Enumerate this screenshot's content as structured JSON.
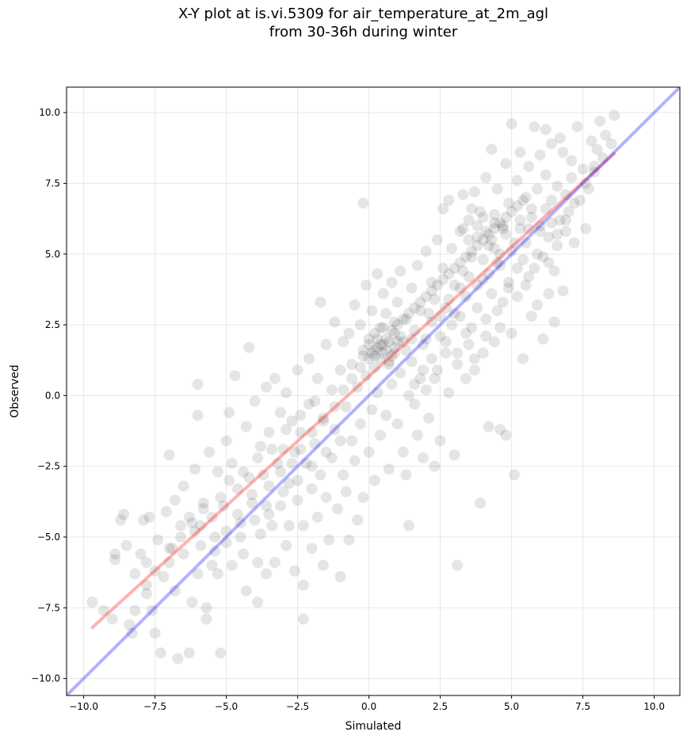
{
  "chart_data": {
    "type": "scatter",
    "title_lines": [
      "X-Y plot at is.vi.5309 for air_temperature_at_2m_agl",
      "from 30-36h during winter"
    ],
    "xlabel": "Simulated",
    "ylabel": "Observed",
    "xlim": [
      -10.6,
      10.9
    ],
    "ylim": [
      -10.6,
      10.9
    ],
    "xticks": [
      -10.0,
      -7.5,
      -5.0,
      -2.5,
      0.0,
      2.5,
      5.0,
      7.5,
      10.0
    ],
    "yticks": [
      -10.0,
      -7.5,
      -5.0,
      -2.5,
      0.0,
      2.5,
      5.0,
      7.5,
      10.0
    ],
    "xtick_labels": [
      "−10.0",
      "−7.5",
      "−5.0",
      "−2.5",
      "0.0",
      "2.5",
      "5.0",
      "7.5",
      "10.0"
    ],
    "ytick_labels": [
      "−10.0",
      "−7.5",
      "−5.0",
      "−2.5",
      "0.0",
      "2.5",
      "5.0",
      "7.5",
      "10.0"
    ],
    "grid": true,
    "point_color": "#000000",
    "point_opacity": 0.1,
    "fit_line": {
      "color": "#ff0000",
      "x": [
        -9.7,
        8.6
      ],
      "y": [
        -8.2,
        8.55
      ]
    },
    "identity_line": {
      "color": "#0000ff",
      "x": [
        -10.6,
        10.9
      ],
      "y": [
        -10.6,
        10.9
      ]
    },
    "points": [
      [
        -9.7,
        -7.3
      ],
      [
        -9.3,
        -7.6
      ],
      [
        -9.0,
        -7.9
      ],
      [
        -8.9,
        -5.6
      ],
      [
        -8.9,
        -5.8
      ],
      [
        -8.7,
        -4.4
      ],
      [
        -8.6,
        -4.2
      ],
      [
        -8.5,
        -5.3
      ],
      [
        -8.4,
        -8.1
      ],
      [
        -8.3,
        -8.4
      ],
      [
        -8.2,
        -7.6
      ],
      [
        -8.0,
        -5.6
      ],
      [
        -7.9,
        -4.4
      ],
      [
        -7.8,
        -6.7
      ],
      [
        -7.8,
        -5.9
      ],
      [
        -7.7,
        -4.3
      ],
      [
        -7.6,
        -7.6
      ],
      [
        -7.5,
        -8.4
      ],
      [
        -7.4,
        -5.1
      ],
      [
        -7.3,
        -9.1
      ],
      [
        -7.2,
        -6.4
      ],
      [
        -7.1,
        -4.1
      ],
      [
        -7.0,
        -5.9
      ],
      [
        -7.0,
        -2.1
      ],
      [
        -6.9,
        -5.4
      ],
      [
        -6.8,
        -3.7
      ],
      [
        -6.7,
        -9.3
      ],
      [
        -6.6,
        -4.6
      ],
      [
        -6.5,
        -5.6
      ],
      [
        -6.5,
        -3.2
      ],
      [
        -6.3,
        -9.1
      ],
      [
        -6.2,
        -7.3
      ],
      [
        -6.1,
        -4.8
      ],
      [
        -6.1,
        -2.6
      ],
      [
        -6.0,
        -0.7
      ],
      [
        -6.0,
        0.4
      ],
      [
        -5.9,
        -5.3
      ],
      [
        -5.8,
        -3.8
      ],
      [
        -5.7,
        -7.9
      ],
      [
        -5.7,
        -7.5
      ],
      [
        -5.6,
        -2.0
      ],
      [
        -5.5,
        -4.3
      ],
      [
        -5.4,
        -5.5
      ],
      [
        -5.3,
        -6.3
      ],
      [
        -5.3,
        -2.7
      ],
      [
        -5.2,
        -9.1
      ],
      [
        -5.1,
        -3.9
      ],
      [
        -5.0,
        -1.6
      ],
      [
        -5.0,
        -4.8
      ],
      [
        -4.9,
        -0.6
      ],
      [
        -4.8,
        -6.0
      ],
      [
        -4.8,
        -2.4
      ],
      [
        -4.7,
        0.7
      ],
      [
        -4.6,
        -3.3
      ],
      [
        -4.5,
        -4.5
      ],
      [
        -4.4,
        -5.6
      ],
      [
        -4.3,
        -1.1
      ],
      [
        -4.3,
        -6.9
      ],
      [
        -4.2,
        -2.9
      ],
      [
        -4.2,
        1.7
      ],
      [
        -4.1,
        -3.8
      ],
      [
        -4.0,
        -0.2
      ],
      [
        -3.9,
        -7.3
      ],
      [
        -3.9,
        -5.9
      ],
      [
        -3.8,
        -4.9
      ],
      [
        -3.8,
        -1.8
      ],
      [
        -3.7,
        -2.8
      ],
      [
        -3.6,
        0.3
      ],
      [
        -3.6,
        -6.3
      ],
      [
        -3.5,
        -3.2
      ],
      [
        -3.5,
        -1.3
      ],
      [
        -3.4,
        -4.6
      ],
      [
        -3.3,
        -5.9
      ],
      [
        -3.3,
        0.6
      ],
      [
        -3.2,
        -2.4
      ],
      [
        -3.1,
        -0.6
      ],
      [
        -3.1,
        -3.9
      ],
      [
        -3.0,
        -1.9
      ],
      [
        -2.9,
        -5.3
      ],
      [
        -2.9,
        0.1
      ],
      [
        -2.8,
        -3.1
      ],
      [
        -2.8,
        -4.6
      ],
      [
        -2.7,
        -0.9
      ],
      [
        -2.6,
        -6.2
      ],
      [
        -2.6,
        -2.0
      ],
      [
        -2.5,
        -3.7
      ],
      [
        -2.5,
        0.9
      ],
      [
        -2.4,
        -1.3
      ],
      [
        -2.3,
        -7.9
      ],
      [
        -2.3,
        -4.6
      ],
      [
        -2.3,
        -6.7
      ],
      [
        -2.2,
        -2.4
      ],
      [
        -2.1,
        -0.3
      ],
      [
        -2.1,
        1.3
      ],
      [
        -2.0,
        -3.3
      ],
      [
        -2.0,
        -5.4
      ],
      [
        -1.9,
        -1.7
      ],
      [
        -1.8,
        -4.3
      ],
      [
        -1.8,
        0.6
      ],
      [
        -1.7,
        -2.8
      ],
      [
        -1.7,
        3.3
      ],
      [
        -1.6,
        -6.0
      ],
      [
        -1.6,
        -0.8
      ],
      [
        -1.5,
        1.8
      ],
      [
        -1.5,
        -3.6
      ],
      [
        -1.4,
        -5.1
      ],
      [
        -1.3,
        -2.2
      ],
      [
        -1.3,
        0.2
      ],
      [
        -1.2,
        2.6
      ],
      [
        -1.2,
        -1.2
      ],
      [
        -1.1,
        -4.0
      ],
      [
        -1.0,
        0.9
      ],
      [
        -1.0,
        -6.4
      ],
      [
        -0.9,
        -2.8
      ],
      [
        -0.9,
        1.9
      ],
      [
        -0.8,
        -0.4
      ],
      [
        -0.8,
        -3.4
      ],
      [
        -0.7,
        2.2
      ],
      [
        -0.7,
        -5.1
      ],
      [
        -0.6,
        -1.6
      ],
      [
        -0.6,
        1.1
      ],
      [
        -0.5,
        -2.3
      ],
      [
        -0.5,
        3.2
      ],
      [
        -0.4,
        0.3
      ],
      [
        -0.4,
        -4.4
      ],
      [
        -0.3,
        2.5
      ],
      [
        -0.3,
        -1.0
      ],
      [
        -0.2,
        6.8
      ],
      [
        -0.2,
        1.6
      ],
      [
        -0.2,
        -3.6
      ],
      [
        -0.1,
        3.9
      ],
      [
        -0.1,
        0.7
      ],
      [
        0.0,
        -2.0
      ],
      [
        0.0,
        2.0
      ],
      [
        0.1,
        -0.5
      ],
      [
        0.1,
        3.0
      ],
      [
        0.2,
        1.4
      ],
      [
        0.2,
        -3.0
      ],
      [
        0.3,
        4.3
      ],
      [
        0.3,
        0.1
      ],
      [
        0.4,
        2.4
      ],
      [
        0.4,
        -1.4
      ],
      [
        0.5,
        1.8
      ],
      [
        0.5,
        3.6
      ],
      [
        0.6,
        -0.7
      ],
      [
        0.6,
        2.9
      ],
      [
        0.7,
        1.1
      ],
      [
        0.7,
        -2.6
      ],
      [
        0.8,
        4.0
      ],
      [
        0.8,
        0.4
      ],
      [
        0.9,
        2.2
      ],
      [
        0.9,
        1.5
      ],
      [
        1.0,
        -1.0
      ],
      [
        1.0,
        3.3
      ],
      [
        1.1,
        0.8
      ],
      [
        1.1,
        4.4
      ],
      [
        1.2,
        -2.0
      ],
      [
        1.2,
        1.9
      ],
      [
        1.3,
        -2.8
      ],
      [
        1.3,
        2.7
      ],
      [
        1.4,
        0.0
      ],
      [
        1.4,
        -4.6
      ],
      [
        1.5,
        3.8
      ],
      [
        1.5,
        1.2
      ],
      [
        1.6,
        -0.3
      ],
      [
        1.6,
        2.3
      ],
      [
        1.7,
        -1.4
      ],
      [
        1.7,
        4.6
      ],
      [
        1.8,
        0.6
      ],
      [
        1.8,
        3.0
      ],
      [
        1.9,
        -2.2
      ],
      [
        1.9,
        1.8
      ],
      [
        2.0,
        5.1
      ],
      [
        2.0,
        0.2
      ],
      [
        2.1,
        2.9
      ],
      [
        2.1,
        -0.8
      ],
      [
        2.2,
        4.0
      ],
      [
        2.2,
        1.3
      ],
      [
        2.3,
        -2.5
      ],
      [
        2.3,
        3.4
      ],
      [
        2.4,
        0.9
      ],
      [
        2.4,
        5.5
      ],
      [
        2.5,
        2.1
      ],
      [
        2.5,
        -1.6
      ],
      [
        2.6,
        4.5
      ],
      [
        2.6,
        6.6
      ],
      [
        2.7,
        1.5
      ],
      [
        2.7,
        3.1
      ],
      [
        2.8,
        0.1
      ],
      [
        2.8,
        6.9
      ],
      [
        2.9,
        5.2
      ],
      [
        2.9,
        2.5
      ],
      [
        3.0,
        -2.1
      ],
      [
        3.0,
        3.9
      ],
      [
        3.1,
        -6.0
      ],
      [
        3.1,
        1.1
      ],
      [
        3.2,
        5.8
      ],
      [
        3.2,
        2.8
      ],
      [
        3.3,
        7.1
      ],
      [
        3.3,
        4.4
      ],
      [
        3.4,
        0.6
      ],
      [
        3.4,
        3.5
      ],
      [
        3.5,
        6.2
      ],
      [
        3.5,
        1.8
      ],
      [
        3.6,
        4.9
      ],
      [
        3.6,
        2.4
      ],
      [
        3.7,
        7.2
      ],
      [
        3.7,
        0.9
      ],
      [
        3.8,
        5.6
      ],
      [
        3.8,
        3.1
      ],
      [
        3.9,
        -3.8
      ],
      [
        3.9,
        6.5
      ],
      [
        4.0,
        1.5
      ],
      [
        4.0,
        4.1
      ],
      [
        4.1,
        7.7
      ],
      [
        4.1,
        2.7
      ],
      [
        4.2,
        5.3
      ],
      [
        4.2,
        -1.1
      ],
      [
        4.3,
        8.7
      ],
      [
        4.3,
        3.6
      ],
      [
        4.4,
        6.1
      ],
      [
        4.4,
        1.9
      ],
      [
        4.5,
        4.7
      ],
      [
        4.5,
        7.3
      ],
      [
        4.6,
        2.4
      ],
      [
        4.6,
        -1.2
      ],
      [
        4.7,
        5.9
      ],
      [
        4.7,
        3.3
      ],
      [
        4.8,
        8.2
      ],
      [
        4.8,
        -1.4
      ],
      [
        4.9,
        6.8
      ],
      [
        4.9,
        4.0
      ],
      [
        5.0,
        9.6
      ],
      [
        5.0,
        2.2
      ],
      [
        5.1,
        5.4
      ],
      [
        5.1,
        -2.8
      ],
      [
        5.2,
        7.6
      ],
      [
        5.2,
        3.5
      ],
      [
        5.3,
        6.2
      ],
      [
        5.3,
        8.6
      ],
      [
        5.4,
        4.8
      ],
      [
        5.4,
        1.3
      ],
      [
        5.5,
        7.0
      ],
      [
        5.5,
        3.9
      ],
      [
        5.6,
        5.9
      ],
      [
        5.6,
        8.1
      ],
      [
        5.7,
        2.8
      ],
      [
        5.7,
        6.6
      ],
      [
        5.8,
        4.5
      ],
      [
        5.8,
        9.5
      ],
      [
        5.9,
        7.3
      ],
      [
        5.9,
        3.2
      ],
      [
        6.0,
        6.0
      ],
      [
        6.0,
        8.5
      ],
      [
        6.1,
        4.9
      ],
      [
        6.1,
        2.0
      ],
      [
        6.2,
        7.8
      ],
      [
        6.2,
        9.4
      ],
      [
        6.3,
        5.6
      ],
      [
        6.3,
        3.6
      ],
      [
        6.4,
        6.9
      ],
      [
        6.4,
        8.9
      ],
      [
        6.5,
        4.4
      ],
      [
        6.5,
        2.6
      ],
      [
        6.6,
        7.4
      ],
      [
        6.6,
        5.3
      ],
      [
        6.7,
        9.1
      ],
      [
        6.7,
        6.2
      ],
      [
        6.8,
        8.6
      ],
      [
        6.8,
        3.7
      ],
      [
        6.9,
        7.1
      ],
      [
        6.9,
        5.8
      ],
      [
        7.0,
        6.5
      ],
      [
        7.1,
        7.7
      ],
      [
        7.2,
        5.4
      ],
      [
        7.3,
        9.5
      ],
      [
        7.4,
        6.9
      ],
      [
        7.5,
        8.0
      ],
      [
        7.6,
        5.9
      ],
      [
        7.7,
        7.3
      ],
      [
        7.8,
        9.0
      ],
      [
        7.9,
        8.1
      ],
      [
        8.0,
        8.7
      ],
      [
        8.1,
        9.7
      ],
      [
        8.2,
        8.4
      ],
      [
        8.3,
        9.2
      ],
      [
        8.5,
        8.9
      ],
      [
        8.6,
        9.9
      ],
      [
        -4.6,
        -4.2
      ],
      [
        -4.1,
        -3.5
      ],
      [
        -3.6,
        -3.9
      ],
      [
        -3.1,
        -2.7
      ],
      [
        -2.7,
        -2.4
      ],
      [
        -2.4,
        -1.9
      ],
      [
        -2.0,
        -1.3
      ],
      [
        -1.6,
        -0.9
      ],
      [
        -1.2,
        -0.4
      ],
      [
        -0.9,
        0.2
      ],
      [
        -0.6,
        0.6
      ],
      [
        -0.3,
        1.0
      ],
      [
        0.0,
        1.3
      ],
      [
        0.2,
        1.6
      ],
      [
        0.4,
        1.8
      ],
      [
        0.6,
        2.0
      ],
      [
        0.8,
        2.3
      ],
      [
        1.0,
        2.5
      ],
      [
        1.2,
        2.7
      ],
      [
        1.4,
        2.9
      ],
      [
        1.6,
        3.1
      ],
      [
        1.8,
        3.3
      ],
      [
        2.0,
        3.5
      ],
      [
        2.2,
        3.7
      ],
      [
        2.4,
        3.9
      ],
      [
        2.6,
        4.1
      ],
      [
        2.8,
        4.3
      ],
      [
        3.0,
        4.5
      ],
      [
        3.2,
        4.7
      ],
      [
        3.4,
        4.9
      ],
      [
        3.6,
        5.1
      ],
      [
        3.8,
        5.3
      ],
      [
        4.0,
        5.5
      ],
      [
        4.2,
        5.7
      ],
      [
        4.4,
        5.9
      ],
      [
        4.6,
        6.1
      ],
      [
        4.8,
        6.3
      ],
      [
        5.0,
        6.5
      ],
      [
        5.2,
        6.7
      ],
      [
        5.4,
        6.9
      ],
      [
        0.1,
        1.5
      ],
      [
        0.3,
        1.7
      ],
      [
        0.5,
        1.5
      ],
      [
        0.7,
        1.9
      ],
      [
        0.9,
        1.7
      ],
      [
        1.1,
        2.1
      ],
      [
        0.2,
        2.2
      ],
      [
        0.4,
        1.3
      ],
      [
        0.6,
        1.6
      ],
      [
        0.8,
        1.4
      ],
      [
        0.0,
        1.8
      ],
      [
        -0.2,
        1.4
      ],
      [
        0.3,
        2.0
      ],
      [
        0.5,
        2.4
      ],
      [
        0.7,
        1.2
      ],
      [
        1.0,
        1.9
      ],
      [
        1.3,
        1.6
      ],
      [
        1.5,
        2.0
      ],
      [
        0.9,
        2.6
      ],
      [
        0.2,
        1.0
      ],
      [
        2.0,
        2.0
      ],
      [
        2.2,
        2.6
      ],
      [
        2.5,
        2.8
      ],
      [
        2.8,
        3.4
      ],
      [
        3.0,
        2.9
      ],
      [
        3.2,
        3.8
      ],
      [
        3.5,
        4.2
      ],
      [
        3.8,
        3.9
      ],
      [
        4.0,
        4.8
      ],
      [
        4.2,
        4.3
      ],
      [
        4.4,
        5.2
      ],
      [
        4.6,
        4.6
      ],
      [
        4.8,
        5.7
      ],
      [
        5.0,
        5.1
      ],
      [
        5.3,
        5.9
      ],
      [
        5.5,
        5.4
      ],
      [
        5.7,
        6.3
      ],
      [
        6.0,
        5.8
      ],
      [
        6.2,
        6.6
      ],
      [
        6.4,
        6.1
      ],
      [
        3.5,
        5.5
      ],
      [
        3.8,
        6.0
      ],
      [
        4.1,
        5.8
      ],
      [
        4.4,
        6.4
      ],
      [
        4.7,
        6.0
      ],
      [
        3.3,
        5.9
      ],
      [
        3.6,
        6.6
      ],
      [
        4.0,
        6.3
      ],
      [
        4.3,
        5.5
      ],
      [
        4.6,
        5.0
      ],
      [
        -5.5,
        -6.0
      ],
      [
        -5.0,
        -5.2
      ],
      [
        -4.5,
        -5.0
      ],
      [
        -4.0,
        -4.4
      ],
      [
        -3.5,
        -4.2
      ],
      [
        -3.0,
        -3.4
      ],
      [
        -2.5,
        -3.0
      ],
      [
        -2.0,
        -2.5
      ],
      [
        -1.5,
        -2.0
      ],
      [
        -1.0,
        -1.6
      ],
      [
        -6.2,
        -4.5
      ],
      [
        -5.8,
        -4.0
      ],
      [
        -5.2,
        -3.6
      ],
      [
        -4.9,
        -3.0
      ],
      [
        -4.4,
        -2.7
      ],
      [
        -3.9,
        -2.2
      ],
      [
        -3.4,
        -1.9
      ],
      [
        -2.9,
        -1.2
      ],
      [
        -2.4,
        -0.7
      ],
      [
        -1.9,
        -0.2
      ],
      [
        -7.5,
        -6.2
      ],
      [
        -7.0,
        -5.4
      ],
      [
        -6.6,
        -5.0
      ],
      [
        -6.3,
        -4.3
      ],
      [
        -5.9,
        -4.6
      ],
      [
        -7.8,
        -7.0
      ],
      [
        -8.2,
        -6.3
      ],
      [
        -6.8,
        -6.9
      ],
      [
        -6.0,
        -6.3
      ],
      [
        -5.4,
        -5.0
      ],
      [
        1.6,
        0.4
      ],
      [
        1.9,
        0.9
      ],
      [
        2.3,
        0.6
      ],
      [
        2.7,
        1.9
      ],
      [
        3.1,
        1.5
      ],
      [
        3.4,
        2.2
      ],
      [
        3.7,
        1.3
      ],
      [
        4.1,
        2.1
      ],
      [
        4.5,
        3.0
      ],
      [
        4.9,
        3.8
      ],
      [
        5.2,
        4.5
      ],
      [
        5.6,
        4.2
      ],
      [
        5.9,
        5.0
      ],
      [
        6.3,
        4.7
      ],
      [
        6.6,
        5.7
      ],
      [
        6.9,
        6.2
      ],
      [
        7.2,
        6.8
      ],
      [
        7.6,
        7.5
      ],
      [
        7.9,
        7.9
      ],
      [
        7.1,
        8.3
      ]
    ]
  }
}
